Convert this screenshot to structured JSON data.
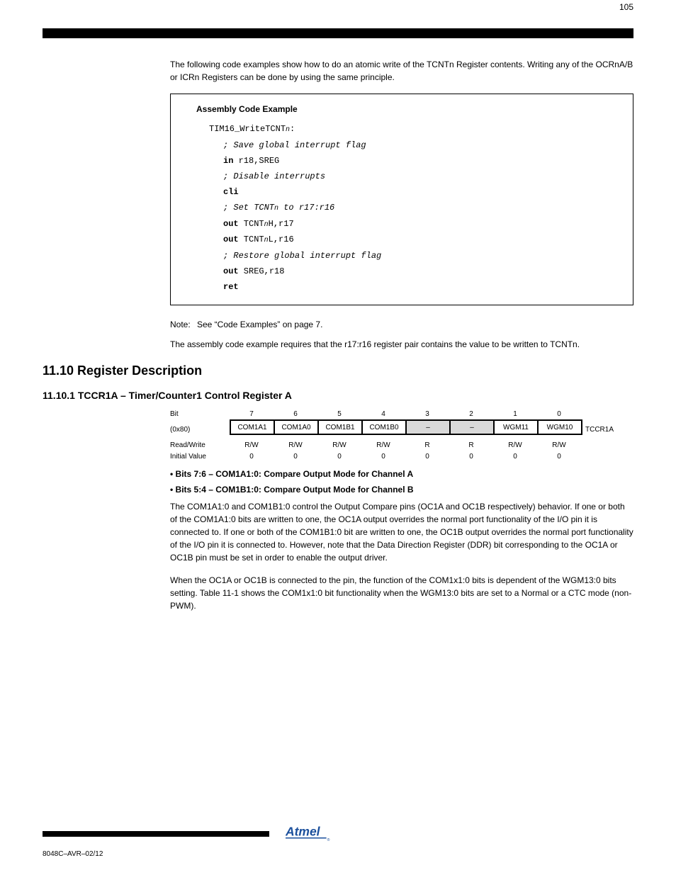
{
  "intro_para": "The following code examples show how to do an atomic write of the TCNTn Register contents. Writing any of the OCRnA/B or ICRn Registers can be done by using the same principle.",
  "codebox": {
    "title": "Assembly Code Example",
    "lines": [
      {
        "indent": 1,
        "parts": [
          {
            "t": "TIM16_WriteTCNT"
          },
          {
            "t": "n",
            "cls": "sub"
          },
          {
            "t": ":"
          }
        ]
      },
      {
        "indent": 2,
        "parts": [
          {
            "t": "; Save global interrupt flag",
            "cls": "it"
          }
        ]
      },
      {
        "indent": 2,
        "parts": [
          {
            "t": "in",
            "cls": "kw"
          },
          {
            "t": " r18,SREG"
          }
        ]
      },
      {
        "indent": 2,
        "parts": [
          {
            "t": "; Disable interrupts",
            "cls": "it"
          }
        ]
      },
      {
        "indent": 2,
        "parts": [
          {
            "t": "cli",
            "cls": "kw"
          }
        ]
      },
      {
        "indent": 2,
        "parts": [
          {
            "t": "; Set TCNT",
            "cls": "it"
          },
          {
            "t": "n",
            "cls": "sub"
          },
          {
            "t": " to r17:r16",
            "cls": "it"
          }
        ]
      },
      {
        "indent": 2,
        "parts": [
          {
            "t": "out",
            "cls": "kw"
          },
          {
            "t": " TCNT"
          },
          {
            "t": "n",
            "cls": "sub"
          },
          {
            "t": "H,r17"
          }
        ]
      },
      {
        "indent": 2,
        "parts": [
          {
            "t": "out",
            "cls": "kw"
          },
          {
            "t": " TCNT"
          },
          {
            "t": "n",
            "cls": "sub"
          },
          {
            "t": "L,r16"
          }
        ]
      },
      {
        "indent": 2,
        "parts": [
          {
            "t": "; Restore global interrupt flag",
            "cls": "it"
          }
        ]
      },
      {
        "indent": 2,
        "parts": [
          {
            "t": "out",
            "cls": "kw"
          },
          {
            "t": " SREG,r18"
          }
        ]
      },
      {
        "indent": 2,
        "parts": [
          {
            "t": "ret",
            "cls": "kw"
          }
        ]
      }
    ]
  },
  "note_label": "Note:",
  "note_body": "See “Code Examples” on page 7.",
  "after_note": "The assembly code example requires that the r17:r16 register pair contains the value to be written to TCNTn.",
  "section_title": "11.10 Register Description",
  "subsection_title": "11.10.1 TCCR1A – Timer/Counter1 Control Register A",
  "register": {
    "bits": [
      "7",
      "6",
      "5",
      "4",
      "3",
      "2",
      "1",
      "0"
    ],
    "cells": [
      "COM1A1",
      "COM1A0",
      "COM1B1",
      "COM1B0",
      "–",
      "–",
      "WGM11",
      "WGM10"
    ],
    "shaded": [
      false,
      false,
      false,
      false,
      true,
      true,
      false,
      false
    ],
    "name": "TCCR1A",
    "rw": [
      "R/W",
      "R/W",
      "R/W",
      "R/W",
      "R",
      "R",
      "R/W",
      "R/W"
    ],
    "init": [
      "0",
      "0",
      "0",
      "0",
      "0",
      "0",
      "0",
      "0"
    ],
    "rw_label": "Read/Write",
    "init_label": "Initial Value",
    "bit_label": "Bit",
    "addr": "(0x80)"
  },
  "bullets": [
    {
      "title": "• Bits 7:6 – COM1A1:0: Compare Output Mode for Channel A"
    },
    {
      "title": "• Bits 5:4 – COM1B1:0: Compare Output Mode for Channel B"
    }
  ],
  "bullet_para1": "The COM1A1:0 and COM1B1:0 control the Output Compare pins (OC1A and OC1B respectively) behavior. If one or both of the COM1A1:0 bits are written to one, the OC1A output overrides the normal port functionality of the I/O pin it is connected to. If one or both of the COM1B1:0 bit are written to one, the OC1B output overrides the normal port functionality of the I/O pin it is connected to. However, note that the Data Direction Register (DDR) bit corresponding to the OC1A or OC1B pin must be set in order to enable the output driver.",
  "bullet_para2": "When the OC1A or OC1B is connected to the pin, the function of the COM1x1:0 bits is dependent of the WGM13:0 bits setting. Table 11-1 shows the COM1x1:0 bit functionality when the WGM13:0 bits are set to a Normal or a CTC mode (non-PWM).",
  "page_number": "105",
  "doc_code": "8048C–AVR–02/12",
  "colors": {
    "shaded": "#d9d9d9",
    "logo_blue": "#1a4f9c"
  }
}
